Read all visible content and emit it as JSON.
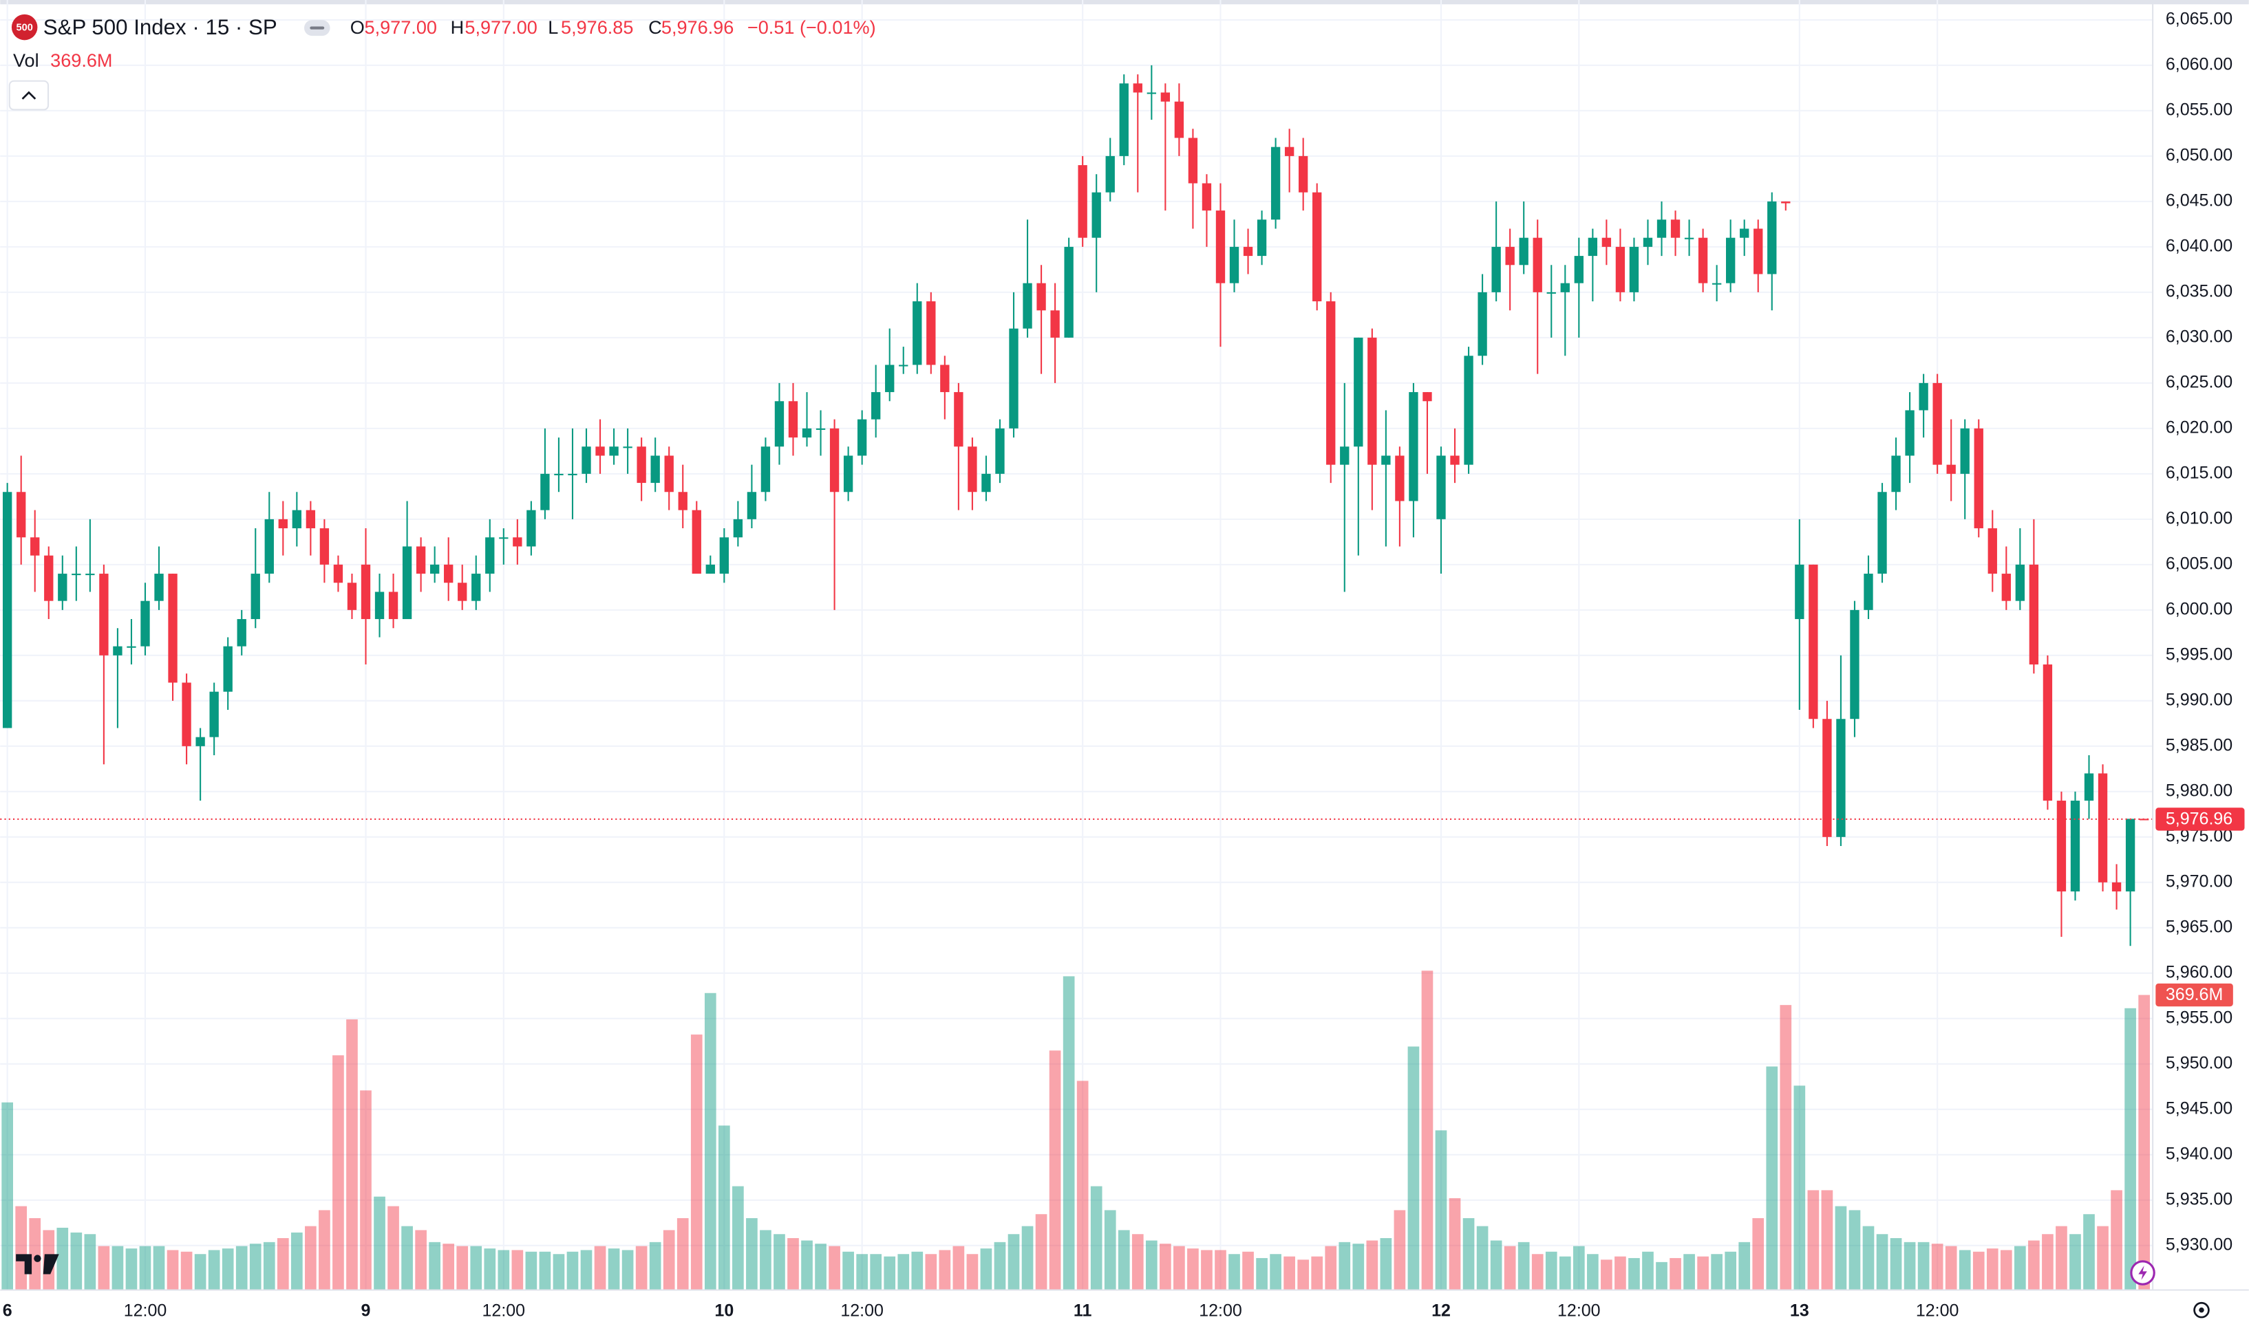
{
  "header": {
    "badge": "500",
    "title": "S&P 500 Index · 15 · SP",
    "ohlc": [
      {
        "key": "O",
        "value": "5,977.00"
      },
      {
        "key": "H",
        "value": "5,977.00"
      },
      {
        "key": "L",
        "value": "5,976.85"
      },
      {
        "key": "C",
        "value": "5,976.96"
      }
    ],
    "change": "−0.51 (−0.01%)",
    "vol_label": "Vol"
  },
  "chart_data": {
    "type": "candlestick",
    "up_color": "#089981",
    "down_color": "#f23645",
    "grid": true,
    "ylim": [
      5925.1,
      6066.4
    ],
    "volume_ylim": [
      0,
      1607
    ],
    "yticks": [
      {
        "value": 6065,
        "label": "6,065.00"
      },
      {
        "value": 6060,
        "label": "6,060.00"
      },
      {
        "value": 6055,
        "label": "6,055.00"
      },
      {
        "value": 6050,
        "label": "6,050.00"
      },
      {
        "value": 6045,
        "label": "6,045.00"
      },
      {
        "value": 6040,
        "label": "6,040.00"
      },
      {
        "value": 6035,
        "label": "6,035.00"
      },
      {
        "value": 6030,
        "label": "6,030.00"
      },
      {
        "value": 6025,
        "label": "6,025.00"
      },
      {
        "value": 6020,
        "label": "6,020.00"
      },
      {
        "value": 6015,
        "label": "6,015.00"
      },
      {
        "value": 6010,
        "label": "6,010.00"
      },
      {
        "value": 6005,
        "label": "6,005.00"
      },
      {
        "value": 6000,
        "label": "6,000.00"
      },
      {
        "value": 5995,
        "label": "5,995.00"
      },
      {
        "value": 5990,
        "label": "5,990.00"
      },
      {
        "value": 5985,
        "label": "5,985.00"
      },
      {
        "value": 5980,
        "label": "5,980.00"
      },
      {
        "value": 5975,
        "label": "5,975.00"
      },
      {
        "value": 5970,
        "label": "5,970.00"
      },
      {
        "value": 5965,
        "label": "5,965.00"
      },
      {
        "value": 5960,
        "label": "5,960.00"
      },
      {
        "value": 5955,
        "label": "5,955.00"
      },
      {
        "value": 5950,
        "label": "5,950.00"
      },
      {
        "value": 5945,
        "label": "5,945.00"
      },
      {
        "value": 5940,
        "label": "5,940.00"
      },
      {
        "value": 5935,
        "label": "5,935.00"
      },
      {
        "value": 5930,
        "label": "5,930.00"
      }
    ],
    "last_price": {
      "value": 5976.96,
      "label": "5,976.96"
    },
    "last_volume_label": "369.6M",
    "categories": [
      "6",
      null,
      null,
      null,
      null,
      null,
      null,
      null,
      null,
      null,
      "12:00",
      null,
      null,
      null,
      null,
      null,
      null,
      null,
      null,
      null,
      null,
      null,
      null,
      null,
      null,
      null,
      "9",
      null,
      null,
      null,
      null,
      null,
      null,
      null,
      null,
      null,
      "12:00",
      null,
      null,
      null,
      null,
      null,
      null,
      null,
      null,
      null,
      null,
      null,
      null,
      null,
      null,
      null,
      "10",
      null,
      null,
      null,
      null,
      null,
      null,
      null,
      null,
      null,
      "12:00",
      null,
      null,
      null,
      null,
      null,
      null,
      null,
      null,
      null,
      null,
      null,
      null,
      null,
      null,
      null,
      "11",
      null,
      null,
      null,
      null,
      null,
      null,
      null,
      null,
      null,
      "12:00",
      null,
      null,
      null,
      null,
      null,
      null,
      null,
      null,
      null,
      null,
      null,
      null,
      null,
      null,
      null,
      "12",
      null,
      null,
      null,
      null,
      null,
      null,
      null,
      null,
      null,
      "12:00",
      null,
      null,
      null,
      null,
      null,
      null,
      null,
      null,
      null,
      null,
      null,
      null,
      null,
      null,
      null,
      "13",
      null,
      null,
      null,
      null,
      null,
      null,
      null,
      null,
      null,
      "12:00",
      null,
      null,
      null,
      null,
      null,
      null,
      null,
      null,
      null,
      null,
      null,
      null,
      null,
      null,
      null
    ],
    "candles": [
      [
        5987,
        6014,
        5987,
        6013,
        235
      ],
      [
        6013,
        6017,
        6005,
        6008,
        105
      ],
      [
        6008,
        6011,
        6002,
        6006,
        90
      ],
      [
        6006,
        6007,
        5999,
        6001,
        75
      ],
      [
        6001,
        6006,
        6000,
        6004,
        78
      ],
      [
        6004,
        6007,
        6001,
        6004,
        72
      ],
      [
        6004,
        6010,
        6002,
        6004,
        70
      ],
      [
        6004,
        6005,
        5983,
        5995,
        55
      ],
      [
        5995,
        5998,
        5987,
        5996,
        55
      ],
      [
        5996,
        5999,
        5994,
        5996,
        52
      ],
      [
        5996,
        6003,
        5995,
        6001,
        55
      ],
      [
        6001,
        6007,
        6000,
        6004,
        55
      ],
      [
        6004,
        6004,
        5990,
        5992,
        50
      ],
      [
        5992,
        5993,
        5983,
        5985,
        48
      ],
      [
        5985,
        5987,
        5979,
        5986,
        45
      ],
      [
        5986,
        5992,
        5984,
        5991,
        50
      ],
      [
        5991,
        5997,
        5989,
        5996,
        52
      ],
      [
        5996,
        6000,
        5995,
        5999,
        55
      ],
      [
        5999,
        6009,
        5998,
        6004,
        58
      ],
      [
        6004,
        6013,
        6003,
        6010,
        60
      ],
      [
        6010,
        6012,
        6006,
        6009,
        65
      ],
      [
        6009,
        6013,
        6007,
        6011,
        72
      ],
      [
        6011,
        6012,
        6006,
        6009,
        80
      ],
      [
        6009,
        6010,
        6003,
        6005,
        100
      ],
      [
        6005,
        6006,
        6002,
        6003,
        294
      ],
      [
        6003,
        6004,
        5999,
        6000,
        339
      ],
      [
        6005,
        6009,
        5994,
        5999,
        250
      ],
      [
        5999,
        6004,
        5997,
        6002,
        117
      ],
      [
        6002,
        6004,
        5998,
        5999,
        105
      ],
      [
        5999,
        6012,
        5999,
        6007,
        80
      ],
      [
        6007,
        6008,
        6002,
        6004,
        75
      ],
      [
        6004,
        6007,
        6003,
        6005,
        60
      ],
      [
        6005,
        6008,
        6001,
        6003,
        58
      ],
      [
        6003,
        6005,
        6000,
        6001,
        55
      ],
      [
        6001,
        6006,
        6000,
        6004,
        55
      ],
      [
        6004,
        6010,
        6002,
        6008,
        52
      ],
      [
        6008,
        6009,
        6005,
        6008,
        50
      ],
      [
        6008,
        6010,
        6005,
        6007,
        50
      ],
      [
        6007,
        6012,
        6006,
        6011,
        48
      ],
      [
        6011,
        6020,
        6010,
        6015,
        48
      ],
      [
        6015,
        6019,
        6013,
        6015,
        45
      ],
      [
        6015,
        6020,
        6010,
        6015,
        48
      ],
      [
        6015,
        6020,
        6014,
        6018,
        50
      ],
      [
        6018,
        6021,
        6015,
        6017,
        55
      ],
      [
        6017,
        6020,
        6016,
        6018,
        52
      ],
      [
        6018,
        6020,
        6015,
        6018,
        50
      ],
      [
        6018,
        6019,
        6012,
        6014,
        55
      ],
      [
        6014,
        6019,
        6013,
        6017,
        60
      ],
      [
        6017,
        6018,
        6011,
        6013,
        75
      ],
      [
        6013,
        6016,
        6009,
        6011,
        90
      ],
      [
        6011,
        6012,
        6004,
        6004,
        320
      ],
      [
        6004,
        6006,
        6004,
        6005,
        372
      ],
      [
        6004,
        6009,
        6003,
        6008,
        206
      ],
      [
        6008,
        6012,
        6007,
        6010,
        130
      ],
      [
        6010,
        6016,
        6009,
        6013,
        90
      ],
      [
        6013,
        6019,
        6012,
        6018,
        75
      ],
      [
        6018,
        6025,
        6016,
        6023,
        70
      ],
      [
        6023,
        6025,
        6017,
        6019,
        65
      ],
      [
        6019,
        6024,
        6018,
        6020,
        62
      ],
      [
        6020,
        6022,
        6017,
        6020,
        58
      ],
      [
        6020,
        6021,
        6000,
        6013,
        55
      ],
      [
        6013,
        6018,
        6012,
        6017,
        48
      ],
      [
        6017,
        6022,
        6016,
        6021,
        45
      ],
      [
        6021,
        6027,
        6019,
        6024,
        45
      ],
      [
        6024,
        6031,
        6023,
        6027,
        42
      ],
      [
        6027,
        6029,
        6026,
        6027,
        45
      ],
      [
        6027,
        6036,
        6026,
        6034,
        48
      ],
      [
        6034,
        6035,
        6026,
        6027,
        45
      ],
      [
        6027,
        6028,
        6021,
        6024,
        50
      ],
      [
        6024,
        6025,
        6011,
        6018,
        55
      ],
      [
        6018,
        6019,
        6011,
        6013,
        45
      ],
      [
        6013,
        6017,
        6012,
        6015,
        52
      ],
      [
        6015,
        6021,
        6014,
        6020,
        60
      ],
      [
        6020,
        6035,
        6019,
        6031,
        70
      ],
      [
        6031,
        6043,
        6030,
        6036,
        80
      ],
      [
        6036,
        6038,
        6026,
        6033,
        95
      ],
      [
        6033,
        6036,
        6025,
        6030,
        300
      ],
      [
        6030,
        6041,
        6030,
        6040,
        393
      ],
      [
        6049,
        6050,
        6040,
        6041,
        262
      ],
      [
        6041,
        6048,
        6035,
        6046,
        130
      ],
      [
        6046,
        6052,
        6045,
        6050,
        100
      ],
      [
        6050,
        6059,
        6049,
        6058,
        75
      ],
      [
        6058,
        6059,
        6046,
        6057,
        70
      ],
      [
        6057,
        6060,
        6054,
        6057,
        62
      ],
      [
        6057,
        6058,
        6044,
        6056,
        58
      ],
      [
        6056,
        6058,
        6050,
        6052,
        55
      ],
      [
        6052,
        6053,
        6042,
        6047,
        52
      ],
      [
        6047,
        6048,
        6040,
        6044,
        50
      ],
      [
        6044,
        6047,
        6029,
        6036,
        50
      ],
      [
        6036,
        6043,
        6035,
        6040,
        45
      ],
      [
        6040,
        6042,
        6037,
        6039,
        48
      ],
      [
        6039,
        6044,
        6038,
        6043,
        40
      ],
      [
        6043,
        6052,
        6042,
        6051,
        45
      ],
      [
        6051,
        6053,
        6046,
        6050,
        42
      ],
      [
        6050,
        6052,
        6044,
        6046,
        38
      ],
      [
        6046,
        6047,
        6033,
        6034,
        42
      ],
      [
        6034,
        6035,
        6014,
        6016,
        55
      ],
      [
        6016,
        6025,
        6002,
        6018,
        60
      ],
      [
        6018,
        6030,
        6006,
        6030,
        58
      ],
      [
        6030,
        6031,
        6011,
        6016,
        62
      ],
      [
        6016,
        6022,
        6007,
        6017,
        65
      ],
      [
        6017,
        6018,
        6007,
        6012,
        100
      ],
      [
        6012,
        6025,
        6008,
        6024,
        305
      ],
      [
        6024,
        6024,
        6015,
        6023,
        400
      ],
      [
        6010,
        6018,
        6004,
        6017,
        200
      ],
      [
        6017,
        6020,
        6014,
        6016,
        115
      ],
      [
        6016,
        6029,
        6015,
        6028,
        90
      ],
      [
        6028,
        6037,
        6027,
        6035,
        80
      ],
      [
        6035,
        6045,
        6034,
        6040,
        62
      ],
      [
        6040,
        6042,
        6033,
        6038,
        55
      ],
      [
        6038,
        6045,
        6037,
        6041,
        60
      ],
      [
        6041,
        6043,
        6026,
        6035,
        45
      ],
      [
        6035,
        6038,
        6030,
        6035,
        48
      ],
      [
        6035,
        6038,
        6028,
        6036,
        42
      ],
      [
        6036,
        6041,
        6030,
        6039,
        55
      ],
      [
        6039,
        6042,
        6034,
        6041,
        45
      ],
      [
        6041,
        6043,
        6038,
        6040,
        38
      ],
      [
        6040,
        6042,
        6034,
        6035,
        42
      ],
      [
        6035,
        6041,
        6034,
        6040,
        40
      ],
      [
        6040,
        6043,
        6038,
        6041,
        48
      ],
      [
        6041,
        6045,
        6039,
        6043,
        35
      ],
      [
        6043,
        6044,
        6039,
        6041,
        40
      ],
      [
        6041,
        6043,
        6039,
        6041,
        45
      ],
      [
        6041,
        6042,
        6035,
        6036,
        42
      ],
      [
        6036,
        6038,
        6034,
        6036,
        45
      ],
      [
        6036,
        6043,
        6035,
        6041,
        48
      ],
      [
        6041,
        6043,
        6039,
        6042,
        60
      ],
      [
        6042,
        6043,
        6035,
        6037,
        90
      ],
      [
        6037,
        6046,
        6033,
        6045,
        280
      ],
      [
        6045,
        6045,
        6044,
        6044.8,
        357
      ],
      [
        5999,
        6010,
        5989,
        6005,
        256
      ],
      [
        6005,
        6005,
        5987,
        5988,
        125
      ],
      [
        5988,
        5990,
        5974,
        5975,
        125
      ],
      [
        5975,
        5995,
        5974,
        5988,
        105
      ],
      [
        5988,
        6001,
        5986,
        6000,
        100
      ],
      [
        6000,
        6006,
        5999,
        6004,
        80
      ],
      [
        6004,
        6014,
        6003,
        6013,
        70
      ],
      [
        6013,
        6019,
        6011,
        6017,
        65
      ],
      [
        6017,
        6024,
        6014,
        6022,
        60
      ],
      [
        6022,
        6026,
        6019,
        6025,
        60
      ],
      [
        6025,
        6026,
        6015,
        6016,
        58
      ],
      [
        6016,
        6021,
        6012,
        6015,
        55
      ],
      [
        6015,
        6021,
        6010,
        6020,
        50
      ],
      [
        6020,
        6021,
        6008,
        6009,
        48
      ],
      [
        6009,
        6011,
        6002,
        6004,
        52
      ],
      [
        6004,
        6007,
        6000,
        6001,
        50
      ],
      [
        6001,
        6009,
        6000,
        6005,
        55
      ],
      [
        6005,
        6010,
        5993,
        5994,
        62
      ],
      [
        5994,
        5995,
        5978,
        5979,
        70
      ],
      [
        5979,
        5980,
        5964,
        5969,
        80
      ],
      [
        5969,
        5980,
        5968,
        5979,
        70
      ],
      [
        5979,
        5984,
        5977,
        5982,
        95
      ],
      [
        5982,
        5983,
        5969,
        5970,
        80
      ],
      [
        5970,
        5972,
        5967,
        5969,
        125
      ],
      [
        5969,
        5977,
        5963,
        5977,
        353
      ],
      [
        5977,
        5977,
        5976.85,
        5976.96,
        369.6
      ]
    ]
  }
}
